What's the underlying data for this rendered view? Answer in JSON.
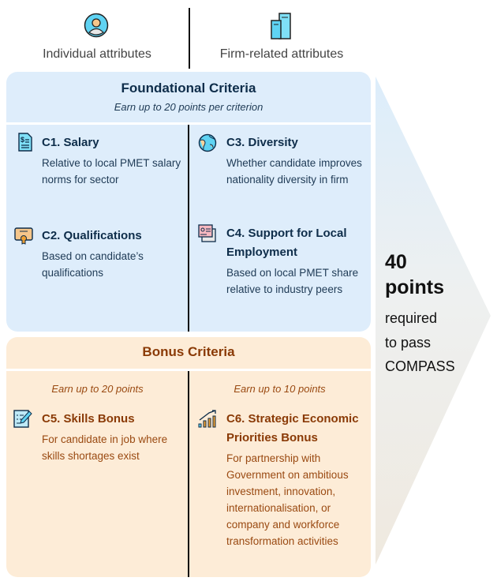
{
  "header": {
    "individual": {
      "label": "Individual attributes",
      "icon": "person-icon"
    },
    "firm": {
      "label": "Firm-related attributes",
      "icon": "building-icon"
    }
  },
  "foundational": {
    "title": "Foundational Criteria",
    "subtitle": "Earn up to 20 points per criterion",
    "color": "#deedfb",
    "criteria": [
      {
        "title": "C1. Salary",
        "desc": "Relative to local PMET salary norms for sector",
        "icon": "salary-document-icon"
      },
      {
        "title": "C2. Qualifications",
        "desc": "Based on candidate’s qualifications",
        "icon": "certificate-icon"
      },
      {
        "title": "C3. Diversity",
        "desc": "Whether candidate improves nationality diversity in firm",
        "icon": "globe-icon"
      },
      {
        "title": "C4. Support for Local Employment",
        "desc": "Based on local PMET share relative to industry peers",
        "icon": "id-cards-icon"
      }
    ]
  },
  "bonus": {
    "title": "Bonus Criteria",
    "color": "#fdecd7",
    "criteria": [
      {
        "subtitle": "Earn up to 20 points",
        "title": "C5. Skills Bonus",
        "desc": "For candidate in job where skills shortages exist",
        "icon": "clipboard-pen-icon"
      },
      {
        "subtitle": "Earn up to 10 points",
        "title": "C6. Strategic Economic Priorities Bonus",
        "desc": "For partnership with Government on ambitious investment, innovation, internationalisation, or company and workforce transformation activities",
        "icon": "growth-chart-icon"
      }
    ]
  },
  "requirement": {
    "points": "40",
    "unit": "points",
    "line1": "required",
    "line2": "to pass",
    "line3": "COMPASS"
  }
}
